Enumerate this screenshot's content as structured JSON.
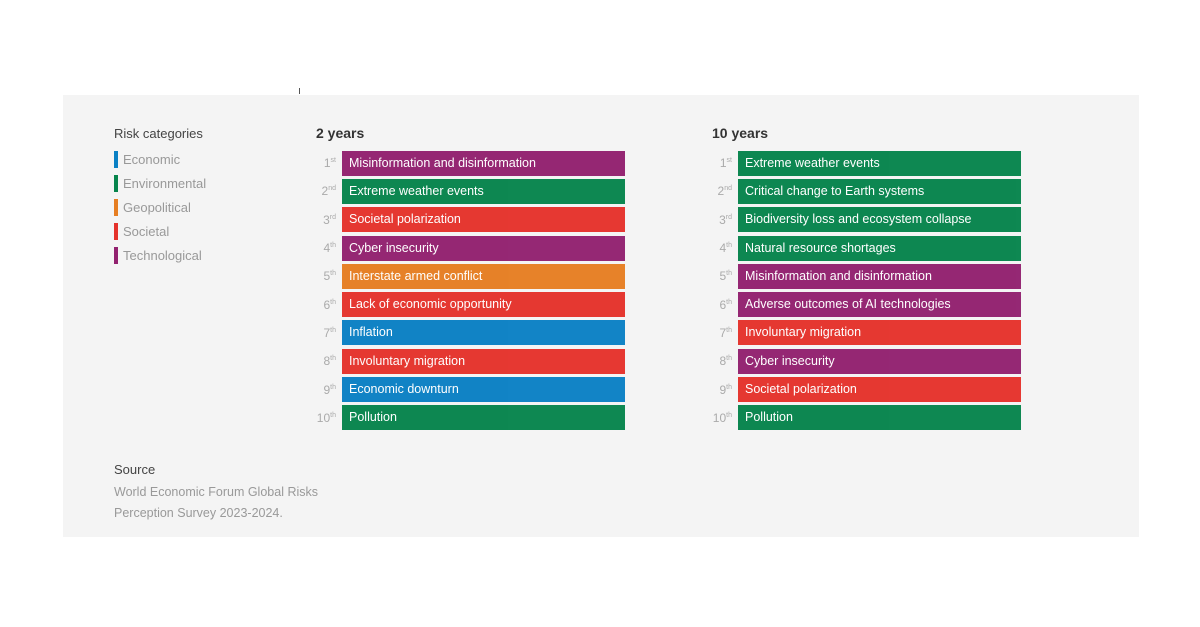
{
  "colors": {
    "Economic": "#0a80c4",
    "Environmental": "#06844c",
    "Geopolitical": "#e67e22",
    "Societal": "#e5322b",
    "Technological": "#92216f"
  },
  "legend": {
    "title": "Risk categories",
    "items": [
      "Economic",
      "Environmental",
      "Geopolitical",
      "Societal",
      "Technological"
    ]
  },
  "columns": [
    {
      "title": "2 years",
      "rows": [
        {
          "num": "1",
          "suffix": "st",
          "label": "Misinformation and disinformation",
          "category": "Technological"
        },
        {
          "num": "2",
          "suffix": "nd",
          "label": "Extreme weather events",
          "category": "Environmental"
        },
        {
          "num": "3",
          "suffix": "rd",
          "label": "Societal polarization",
          "category": "Societal"
        },
        {
          "num": "4",
          "suffix": "th",
          "label": "Cyber insecurity",
          "category": "Technological"
        },
        {
          "num": "5",
          "suffix": "th",
          "label": "Interstate armed conflict",
          "category": "Geopolitical"
        },
        {
          "num": "6",
          "suffix": "th",
          "label": "Lack of economic opportunity",
          "category": "Societal"
        },
        {
          "num": "7",
          "suffix": "th",
          "label": "Inflation",
          "category": "Economic"
        },
        {
          "num": "8",
          "suffix": "th",
          "label": "Involuntary migration",
          "category": "Societal"
        },
        {
          "num": "9",
          "suffix": "th",
          "label": "Economic downturn",
          "category": "Economic"
        },
        {
          "num": "10",
          "suffix": "th",
          "label": "Pollution",
          "category": "Environmental"
        }
      ]
    },
    {
      "title": "10 years",
      "rows": [
        {
          "num": "1",
          "suffix": "st",
          "label": "Extreme weather events",
          "category": "Environmental"
        },
        {
          "num": "2",
          "suffix": "nd",
          "label": "Critical change to Earth systems",
          "category": "Environmental"
        },
        {
          "num": "3",
          "suffix": "rd",
          "label": "Biodiversity loss and ecosystem collapse",
          "category": "Environmental"
        },
        {
          "num": "4",
          "suffix": "th",
          "label": "Natural resource shortages",
          "category": "Environmental"
        },
        {
          "num": "5",
          "suffix": "th",
          "label": "Misinformation and disinformation",
          "category": "Technological"
        },
        {
          "num": "6",
          "suffix": "th",
          "label": "Adverse outcomes of AI technologies",
          "category": "Technological"
        },
        {
          "num": "7",
          "suffix": "th",
          "label": "Involuntary migration",
          "category": "Societal"
        },
        {
          "num": "8",
          "suffix": "th",
          "label": "Cyber insecurity",
          "category": "Technological"
        },
        {
          "num": "9",
          "suffix": "th",
          "label": "Societal polarization",
          "category": "Societal"
        },
        {
          "num": "10",
          "suffix": "th",
          "label": "Pollution",
          "category": "Environmental"
        }
      ]
    }
  ],
  "source": {
    "title": "Source",
    "text": "World Economic Forum Global Risks Perception Survey 2023-2024."
  }
}
